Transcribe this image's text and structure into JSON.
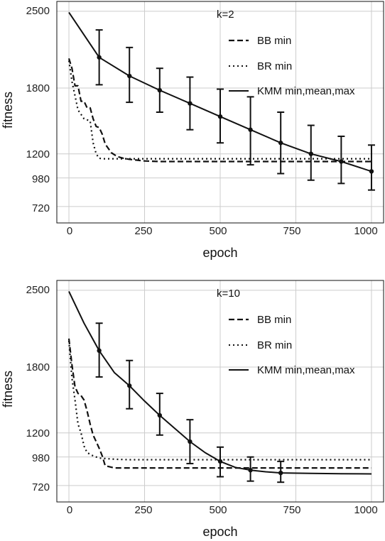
{
  "chart_data": [
    {
      "type": "line",
      "title": "k=2",
      "xlabel": "epoch",
      "ylabel": "fitness",
      "xlim": [
        -40,
        1040
      ],
      "ylim": [
        570,
        2590
      ],
      "xticks": [
        0,
        250,
        500,
        750,
        1000
      ],
      "yticks": [
        720,
        980,
        1200,
        1800,
        2500
      ],
      "grid": true,
      "legend_position": "top-right",
      "series": [
        {
          "name": "BB min",
          "style": "dashed",
          "x": [
            0,
            10,
            20,
            30,
            40,
            50,
            60,
            70,
            80,
            90,
            100,
            110,
            120,
            140,
            160,
            180,
            200,
            250,
            300,
            400,
            500,
            600,
            700,
            800,
            900,
            1000
          ],
          "y": [
            2070,
            1980,
            1820,
            1820,
            1680,
            1680,
            1620,
            1620,
            1520,
            1450,
            1440,
            1380,
            1290,
            1210,
            1175,
            1160,
            1150,
            1135,
            1130,
            1130,
            1130,
            1130,
            1130,
            1130,
            1130,
            1130
          ]
        },
        {
          "name": "BR min",
          "style": "dotted",
          "x": [
            0,
            10,
            20,
            30,
            40,
            50,
            60,
            70,
            80,
            90,
            100,
            110,
            150,
            200,
            300,
            500,
            700,
            1000
          ],
          "y": [
            2050,
            1860,
            1730,
            1600,
            1560,
            1520,
            1510,
            1500,
            1300,
            1200,
            1160,
            1155,
            1155,
            1155,
            1155,
            1155,
            1155,
            1155
          ]
        },
        {
          "name": "KMM min,mean,max",
          "style": "solid",
          "x": [
            0,
            100,
            200,
            300,
            400,
            500,
            600,
            700,
            800,
            900,
            1000
          ],
          "y": [
            2490,
            2080,
            1910,
            1780,
            1660,
            1540,
            1420,
            1300,
            1200,
            1130,
            1040
          ],
          "err_x": [
            100,
            200,
            300,
            400,
            500,
            600,
            700,
            800,
            900,
            1000
          ],
          "err_mean": [
            2080,
            1910,
            1780,
            1660,
            1540,
            1420,
            1300,
            1200,
            1130,
            1040
          ],
          "err_low": [
            1830,
            1670,
            1580,
            1420,
            1300,
            1100,
            1020,
            960,
            930,
            870
          ],
          "err_high": [
            2330,
            2170,
            1980,
            1900,
            1790,
            1720,
            1580,
            1460,
            1360,
            1280
          ]
        }
      ]
    },
    {
      "type": "line",
      "title": "k=10",
      "xlabel": "epoch",
      "ylabel": "fitness",
      "xlim": [
        -40,
        1040
      ],
      "ylim": [
        570,
        2590
      ],
      "xticks": [
        0,
        250,
        500,
        750,
        1000
      ],
      "yticks": [
        720,
        980,
        1200,
        1800,
        2500
      ],
      "grid": true,
      "legend_position": "top-right",
      "series": [
        {
          "name": "BB min",
          "style": "dashed",
          "x": [
            0,
            10,
            20,
            30,
            40,
            50,
            60,
            70,
            80,
            90,
            100,
            110,
            120,
            150,
            200,
            300,
            500,
            700,
            1000
          ],
          "y": [
            2060,
            1820,
            1620,
            1560,
            1540,
            1500,
            1400,
            1280,
            1180,
            1120,
            1060,
            990,
            900,
            880,
            880,
            880,
            880,
            880,
            880
          ]
        },
        {
          "name": "BR min",
          "style": "dotted",
          "x": [
            0,
            10,
            20,
            30,
            40,
            50,
            60,
            80,
            100,
            150,
            200,
            300,
            500,
            700,
            1000
          ],
          "y": [
            2040,
            1700,
            1500,
            1280,
            1200,
            1080,
            1020,
            990,
            970,
            960,
            955,
            955,
            955,
            955,
            955
          ]
        },
        {
          "name": "KMM min,mean,max",
          "style": "solid",
          "x": [
            0,
            50,
            100,
            150,
            200,
            250,
            300,
            350,
            400,
            450,
            500,
            550,
            600,
            650,
            700,
            800,
            900,
            1000
          ],
          "y": [
            2490,
            2200,
            1950,
            1750,
            1630,
            1490,
            1360,
            1240,
            1120,
            1020,
            940,
            885,
            860,
            845,
            835,
            830,
            828,
            826
          ],
          "err_x": [
            100,
            200,
            300,
            400,
            500,
            600,
            700
          ],
          "err_mean": [
            1950,
            1630,
            1360,
            1120,
            940,
            860,
            835
          ],
          "err_low": [
            1710,
            1420,
            1180,
            920,
            800,
            760,
            750
          ],
          "err_high": [
            2200,
            1860,
            1560,
            1320,
            1070,
            980,
            940
          ]
        }
      ]
    }
  ],
  "panels": [
    {
      "ylabel": "fitness",
      "xlabel": "epoch",
      "title": "k=2",
      "xtick_labels": [
        "0",
        "250",
        "500",
        "750",
        "1000"
      ],
      "ytick_labels": [
        "2500",
        "1800",
        "1200",
        "980",
        "720"
      ],
      "legend": [
        "BB min",
        "BR min",
        "KMM min,mean,max"
      ]
    },
    {
      "ylabel": "fitness",
      "xlabel": "epoch",
      "title": "k=10",
      "xtick_labels": [
        "0",
        "250",
        "500",
        "750",
        "1000"
      ],
      "ytick_labels": [
        "2500",
        "1800",
        "1200",
        "980",
        "720"
      ],
      "legend": [
        "BB min",
        "BR min",
        "KMM min,mean,max"
      ]
    }
  ],
  "colors": {
    "line": "#111111",
    "grid": "#cccccc",
    "frame": "#111111"
  }
}
